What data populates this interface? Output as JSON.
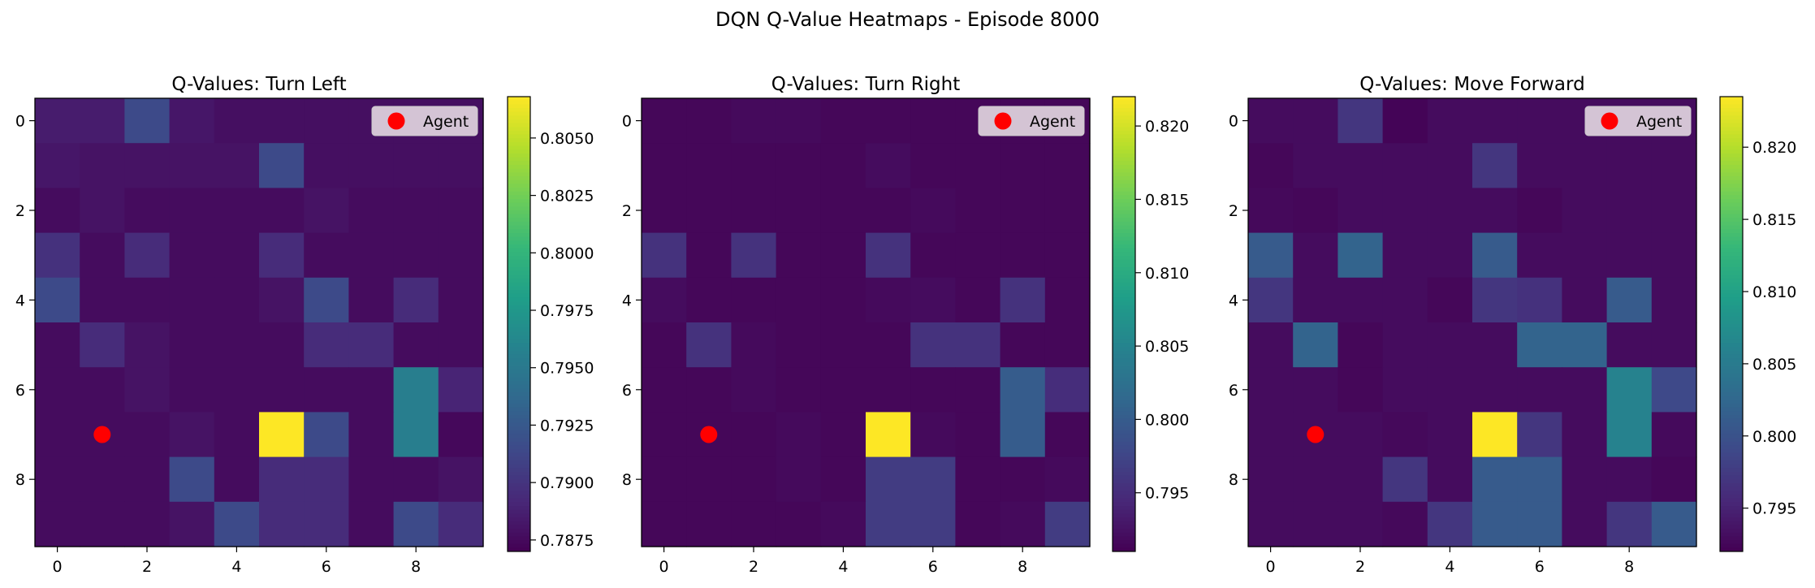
{
  "suptitle": "DQN Q-Value Heatmaps - Episode 8000",
  "chart_data": [
    {
      "type": "heatmap",
      "title": "Q-Values: Turn Left",
      "xlabel": "",
      "ylabel": "",
      "x_ticks": [
        0,
        2,
        4,
        6,
        8
      ],
      "y_ticks": [
        0,
        2,
        4,
        6,
        8
      ],
      "grid": false,
      "colormap": "viridis",
      "vmin": 0.787,
      "vmax": 0.8068,
      "colorbar_ticks": [
        "0.7875",
        "0.7900",
        "0.7925",
        "0.7950",
        "0.7975",
        "0.8000",
        "0.8025",
        "0.8050"
      ],
      "colorbar_tick_values": [
        0.7875,
        0.79,
        0.7925,
        0.795,
        0.7975,
        0.8,
        0.8025,
        0.805
      ],
      "values": [
        [
          0.7885,
          0.7885,
          0.7915,
          0.7882,
          0.7878,
          0.7878,
          0.7878,
          0.7878,
          0.7878,
          0.7878
        ],
        [
          0.7882,
          0.788,
          0.788,
          0.788,
          0.788,
          0.7915,
          0.7878,
          0.7878,
          0.7878,
          0.7878
        ],
        [
          0.7876,
          0.788,
          0.7876,
          0.7876,
          0.7876,
          0.7876,
          0.788,
          0.7876,
          0.7876,
          0.7876
        ],
        [
          0.7898,
          0.7876,
          0.7895,
          0.7876,
          0.7876,
          0.7895,
          0.7876,
          0.7876,
          0.7876,
          0.7876
        ],
        [
          0.7915,
          0.7876,
          0.7876,
          0.7876,
          0.7876,
          0.788,
          0.7915,
          0.7876,
          0.7895,
          0.7876
        ],
        [
          0.7876,
          0.7895,
          0.788,
          0.7876,
          0.7876,
          0.7876,
          0.7895,
          0.7895,
          0.7876,
          0.7876
        ],
        [
          0.7876,
          0.7876,
          0.788,
          0.7876,
          0.7876,
          0.7876,
          0.7876,
          0.7876,
          0.7955,
          0.789
        ],
        [
          0.7876,
          0.7876,
          0.7876,
          0.788,
          0.7876,
          0.8068,
          0.7915,
          0.7876,
          0.7955,
          0.7874
        ],
        [
          0.7876,
          0.7876,
          0.7876,
          0.7915,
          0.7876,
          0.7895,
          0.7895,
          0.7876,
          0.7876,
          0.788
        ],
        [
          0.7876,
          0.7876,
          0.7876,
          0.788,
          0.7915,
          0.7895,
          0.7895,
          0.7876,
          0.7915,
          0.7895
        ]
      ],
      "agent": {
        "x": 1,
        "y": 7
      },
      "legend": {
        "label": "Agent",
        "position": "upper right"
      }
    },
    {
      "type": "heatmap",
      "title": "Q-Values: Turn Right",
      "xlabel": "",
      "ylabel": "",
      "x_ticks": [
        0,
        2,
        4,
        6,
        8
      ],
      "y_ticks": [
        0,
        2,
        4,
        6,
        8
      ],
      "grid": false,
      "colormap": "viridis",
      "vmin": 0.791,
      "vmax": 0.822,
      "colorbar_ticks": [
        "0.795",
        "0.800",
        "0.805",
        "0.810",
        "0.815",
        "0.820"
      ],
      "colorbar_tick_values": [
        0.795,
        0.8,
        0.805,
        0.81,
        0.815,
        0.82
      ],
      "values": [
        [
          0.7915,
          0.7915,
          0.7918,
          0.7918,
          0.7915,
          0.7915,
          0.7915,
          0.7915,
          0.7915,
          0.7915
        ],
        [
          0.7915,
          0.7915,
          0.7915,
          0.7915,
          0.7915,
          0.792,
          0.7915,
          0.7915,
          0.7915,
          0.7915
        ],
        [
          0.7915,
          0.7915,
          0.7915,
          0.7915,
          0.7915,
          0.7915,
          0.7918,
          0.7915,
          0.7915,
          0.7915
        ],
        [
          0.7955,
          0.7915,
          0.7955,
          0.7915,
          0.7915,
          0.7955,
          0.7915,
          0.7915,
          0.7915,
          0.7915
        ],
        [
          0.792,
          0.7915,
          0.7915,
          0.7915,
          0.7915,
          0.7918,
          0.792,
          0.7915,
          0.7955,
          0.7915
        ],
        [
          0.7915,
          0.7955,
          0.7918,
          0.7915,
          0.7915,
          0.7915,
          0.7955,
          0.7955,
          0.7915,
          0.7915
        ],
        [
          0.7915,
          0.7915,
          0.7918,
          0.7915,
          0.7915,
          0.7915,
          0.7915,
          0.7915,
          0.8,
          0.795
        ],
        [
          0.7915,
          0.7915,
          0.7915,
          0.7918,
          0.7915,
          0.822,
          0.7918,
          0.7915,
          0.8,
          0.7915
        ],
        [
          0.7915,
          0.7915,
          0.7915,
          0.7918,
          0.7915,
          0.7965,
          0.7965,
          0.7915,
          0.7915,
          0.7918
        ],
        [
          0.7915,
          0.7915,
          0.7915,
          0.7915,
          0.7918,
          0.7965,
          0.7965,
          0.7915,
          0.7918,
          0.7965
        ]
      ],
      "agent": {
        "x": 1,
        "y": 7
      },
      "legend": {
        "label": "Agent",
        "position": "upper right"
      }
    },
    {
      "type": "heatmap",
      "title": "Q-Values: Move Forward",
      "xlabel": "",
      "ylabel": "",
      "x_ticks": [
        0,
        2,
        4,
        6,
        8
      ],
      "y_ticks": [
        0,
        2,
        4,
        6,
        8
      ],
      "grid": false,
      "colormap": "viridis",
      "vmin": 0.792,
      "vmax": 0.8235,
      "colorbar_ticks": [
        "0.795",
        "0.800",
        "0.805",
        "0.810",
        "0.815",
        "0.820"
      ],
      "colorbar_tick_values": [
        0.795,
        0.8,
        0.805,
        0.81,
        0.815,
        0.82
      ],
      "values": [
        [
          0.793,
          0.793,
          0.797,
          0.7923,
          0.793,
          0.793,
          0.793,
          0.793,
          0.793,
          0.793
        ],
        [
          0.7925,
          0.793,
          0.793,
          0.793,
          0.793,
          0.797,
          0.793,
          0.793,
          0.793,
          0.793
        ],
        [
          0.7927,
          0.7925,
          0.793,
          0.793,
          0.793,
          0.793,
          0.7925,
          0.793,
          0.793,
          0.793
        ],
        [
          0.801,
          0.793,
          0.802,
          0.793,
          0.793,
          0.801,
          0.793,
          0.793,
          0.793,
          0.793
        ],
        [
          0.797,
          0.793,
          0.793,
          0.793,
          0.7925,
          0.797,
          0.7965,
          0.793,
          0.801,
          0.793
        ],
        [
          0.793,
          0.802,
          0.7925,
          0.793,
          0.793,
          0.793,
          0.802,
          0.802,
          0.793,
          0.793
        ],
        [
          0.793,
          0.793,
          0.7925,
          0.793,
          0.793,
          0.793,
          0.793,
          0.793,
          0.806,
          0.799
        ],
        [
          0.793,
          0.793,
          0.793,
          0.7927,
          0.793,
          0.8235,
          0.797,
          0.793,
          0.806,
          0.7928
        ],
        [
          0.793,
          0.793,
          0.793,
          0.797,
          0.793,
          0.801,
          0.801,
          0.793,
          0.793,
          0.7925
        ],
        [
          0.793,
          0.793,
          0.793,
          0.7927,
          0.797,
          0.801,
          0.801,
          0.793,
          0.797,
          0.801
        ]
      ],
      "agent": {
        "x": 1,
        "y": 7
      },
      "legend": {
        "label": "Agent",
        "position": "upper right"
      }
    }
  ],
  "colors": {
    "agent": "#ff0000",
    "legend_bg": "#dccfdb",
    "viridis": [
      "#440154",
      "#482878",
      "#3e4989",
      "#31688e",
      "#26828e",
      "#1f9e89",
      "#35b779",
      "#6ece58",
      "#b5de2b",
      "#fde725"
    ]
  }
}
